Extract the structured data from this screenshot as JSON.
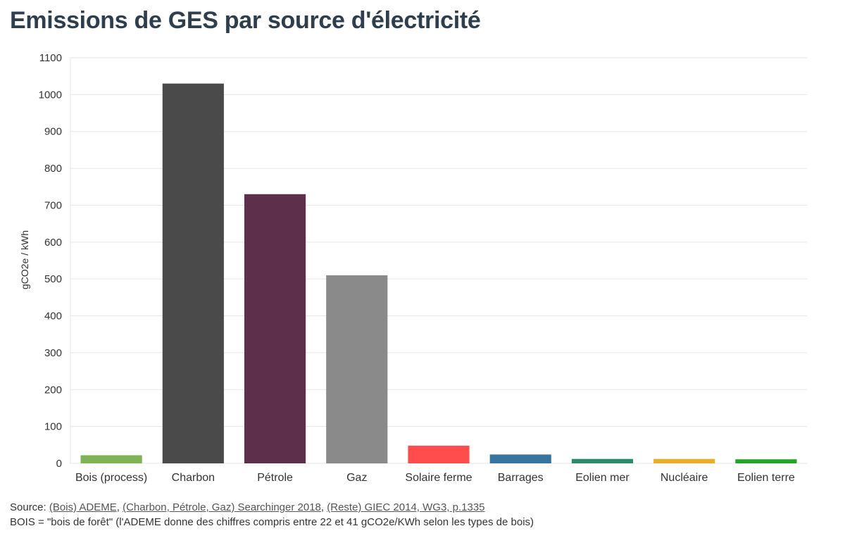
{
  "chart_data": {
    "type": "bar",
    "title": "Emissions de GES par source d'électricité",
    "xlabel": "",
    "ylabel": "gCO2e / kWh",
    "ylim": [
      0,
      1100
    ],
    "yticks": [
      0,
      100,
      200,
      300,
      400,
      500,
      600,
      700,
      800,
      900,
      1000,
      1100
    ],
    "grid": true,
    "categories": [
      "Bois (process)",
      "Charbon",
      "Pétrole",
      "Gaz",
      "Solaire ferme",
      "Barrages",
      "Eolien mer",
      "Nucléaire",
      "Eolien terre"
    ],
    "values": [
      22,
      1030,
      730,
      510,
      48,
      24,
      12,
      12,
      11
    ],
    "colors": [
      "#7fb356",
      "#4a4a4a",
      "#5e2f4b",
      "#8a8a8a",
      "#ff4d4d",
      "#3575a0",
      "#2a8c6a",
      "#e8ae2a",
      "#20a526"
    ]
  },
  "footer": {
    "source_label": "Source:",
    "links": [
      "(Bois) ADEME",
      "(Charbon, Pétrole, Gaz) Searchinger 2018",
      "(Reste) GIEC 2014, WG3, p.1335"
    ],
    "note": "BOIS = \"bois de forêt\" (l'ADEME donne des chiffres compris entre 22 et 41 gCO2e/KWh selon les types de bois)"
  }
}
